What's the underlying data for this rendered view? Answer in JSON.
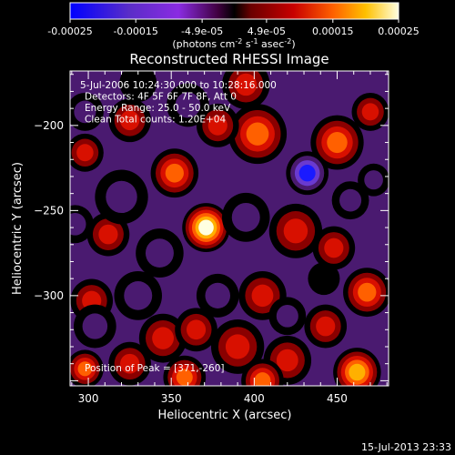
{
  "colors": {
    "background": "#000000",
    "text": "#ffffff",
    "colormap": [
      "#0000ff",
      "#5a2dc8",
      "#8a2be2",
      "#400040",
      "#000000",
      "#6a0000",
      "#c80000",
      "#ff6000",
      "#ffc000",
      "#ffffe0"
    ]
  },
  "colorbar": {
    "tick_labels": [
      "-0.00025",
      "-0.00015",
      "-4.9e-05",
      "4.9e-05",
      "0.00015",
      "0.00025"
    ],
    "tick_values": [
      -0.00025,
      -0.00015,
      -4.9e-05,
      4.9e-05,
      0.00015,
      0.00025
    ],
    "range": [
      -0.00025,
      0.00025
    ],
    "unit_label": "(photons cm",
    "unit_exp1": "-2",
    "unit_mid": " s",
    "unit_exp2": "-1",
    "unit_mid2": " asec",
    "unit_exp3": "-2",
    "unit_end": ")"
  },
  "chart_data": {
    "type": "heatmap",
    "title": "Reconstructed RHESSI Image",
    "xlabel": "Heliocentric X (arcsec)",
    "ylabel": "Heliocentric Y (arcsec)",
    "xlim": [
      289,
      481
    ],
    "ylim": [
      -353,
      -168
    ],
    "x_ticks": [
      300,
      350,
      400,
      450
    ],
    "y_ticks": [
      -200,
      -250,
      -300
    ],
    "x_tick_labels": [
      "300",
      "350",
      "400",
      "450"
    ],
    "y_tick_labels": [
      "−200",
      "−250",
      "−300"
    ],
    "annotations": [
      "5-Jul-2006 10:24:30.000 to 10:28:16.000",
      "Detectors: 4F 5F 6F 7F 8F, Att 0",
      "Energy Range: 25.0 - 50.0 keV",
      "Clean    Total counts: 1.20E+04"
    ],
    "peak_label": "Position of Peak = [371,-260]",
    "peak": [
      371,
      -260
    ],
    "blobs": [
      {
        "x": 371,
        "y": -260,
        "v": 1.0,
        "r": 9
      },
      {
        "x": 352,
        "y": -228,
        "v": 0.7,
        "r": 9
      },
      {
        "x": 298,
        "y": -216,
        "v": 0.6,
        "r": 7
      },
      {
        "x": 302,
        "y": -303,
        "v": 0.55,
        "r": 8
      },
      {
        "x": 312,
        "y": -264,
        "v": 0.45,
        "r": 8
      },
      {
        "x": 325,
        "y": -197,
        "v": 0.45,
        "r": 8
      },
      {
        "x": 395,
        "y": -176,
        "v": 0.6,
        "r": 9
      },
      {
        "x": 402,
        "y": -205,
        "v": 0.7,
        "r": 11
      },
      {
        "x": 378,
        "y": -200,
        "v": 0.45,
        "r": 8
      },
      {
        "x": 450,
        "y": -210,
        "v": 0.75,
        "r": 10
      },
      {
        "x": 470,
        "y": -192,
        "v": 0.6,
        "r": 7
      },
      {
        "x": 425,
        "y": -262,
        "v": 0.55,
        "r": 10
      },
      {
        "x": 448,
        "y": -272,
        "v": 0.45,
        "r": 8
      },
      {
        "x": 405,
        "y": -300,
        "v": 0.45,
        "r": 9
      },
      {
        "x": 468,
        "y": -298,
        "v": 0.75,
        "r": 9
      },
      {
        "x": 443,
        "y": -318,
        "v": 0.5,
        "r": 8
      },
      {
        "x": 345,
        "y": -325,
        "v": 0.6,
        "r": 9
      },
      {
        "x": 365,
        "y": -320,
        "v": 0.5,
        "r": 8
      },
      {
        "x": 390,
        "y": -330,
        "v": 0.55,
        "r": 10
      },
      {
        "x": 420,
        "y": -338,
        "v": 0.45,
        "r": 9
      },
      {
        "x": 325,
        "y": -340,
        "v": 0.5,
        "r": 8
      },
      {
        "x": 358,
        "y": -348,
        "v": 0.8,
        "r": 8
      },
      {
        "x": 405,
        "y": -350,
        "v": 0.7,
        "r": 8
      },
      {
        "x": 462,
        "y": -345,
        "v": 0.9,
        "r": 9
      },
      {
        "x": 298,
        "y": -343,
        "v": 0.7,
        "r": 7
      },
      {
        "x": 432,
        "y": -228,
        "v": -1.0,
        "r": 8
      },
      {
        "x": 395,
        "y": -254,
        "v": -0.6,
        "r": 9
      },
      {
        "x": 320,
        "y": -242,
        "v": -0.55,
        "r": 10
      },
      {
        "x": 292,
        "y": -258,
        "v": -0.55,
        "r": 7
      },
      {
        "x": 343,
        "y": -275,
        "v": -0.6,
        "r": 9
      },
      {
        "x": 304,
        "y": -318,
        "v": -0.6,
        "r": 8
      },
      {
        "x": 330,
        "y": -300,
        "v": -0.45,
        "r": 9
      },
      {
        "x": 298,
        "y": -192,
        "v": -0.5,
        "r": 7
      },
      {
        "x": 360,
        "y": -188,
        "v": -0.45,
        "r": 8
      },
      {
        "x": 330,
        "y": -175,
        "v": -0.35,
        "r": 7
      },
      {
        "x": 378,
        "y": -300,
        "v": -0.5,
        "r": 8
      },
      {
        "x": 420,
        "y": -312,
        "v": -0.45,
        "r": 7
      },
      {
        "x": 458,
        "y": -244,
        "v": -0.5,
        "r": 7
      },
      {
        "x": 472,
        "y": -232,
        "v": -0.4,
        "r": 6
      },
      {
        "x": 442,
        "y": -290,
        "v": -0.35,
        "r": 6
      }
    ]
  },
  "footer": {
    "timestamp": "15-Jul-2013 23:33"
  }
}
